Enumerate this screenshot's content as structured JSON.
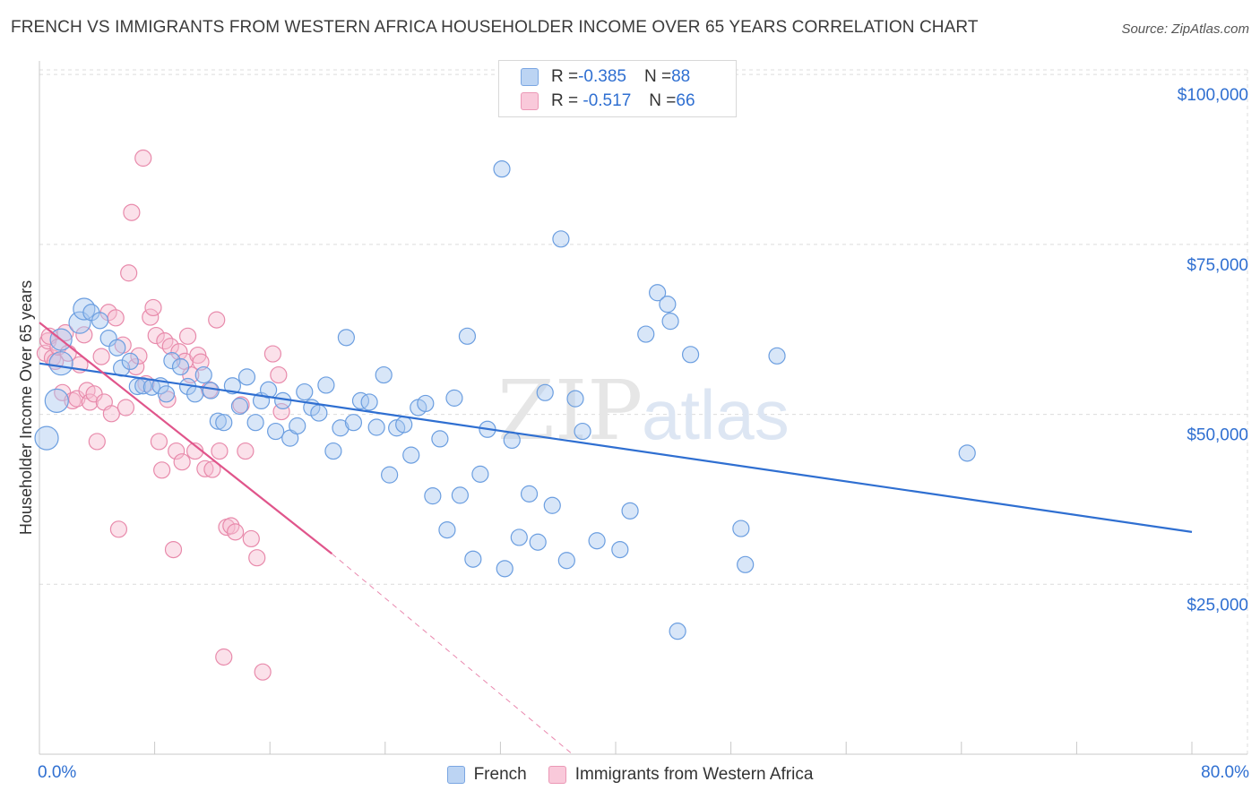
{
  "title": "FRENCH VS IMMIGRANTS FROM WESTERN AFRICA HOUSEHOLDER INCOME OVER 65 YEARS CORRELATION CHART",
  "source": "Source: ZipAtlas.com",
  "watermark": {
    "zip": "ZIP",
    "atlas": "atlas"
  },
  "legend": {
    "french": {
      "r_label": "R = ",
      "r_value": "-0.385",
      "n_label": "N = ",
      "n_value": "88"
    },
    "wafrica": {
      "r_label": "R = ",
      "r_value": " -0.517",
      "n_label": "N = ",
      "n_value": "66"
    }
  },
  "colors": {
    "french_fill": "#a9c8f0",
    "french_stroke": "#6b9ee0",
    "french_line": "#2f6fd1",
    "wafrica_fill": "#f6bcd0",
    "wafrica_stroke": "#e88aab",
    "wafrica_line": "#e0558b",
    "axis_text": "#2f6fd1",
    "grid": "#dcdcdc"
  },
  "chart_data": {
    "type": "scatter",
    "title": "FRENCH VS IMMIGRANTS FROM WESTERN AFRICA HOUSEHOLDER INCOME OVER 65 YEARS CORRELATION CHART",
    "xlabel": "",
    "ylabel": "Householder Income Over 65 years",
    "xlim": [
      0,
      80
    ],
    "ylim": [
      0,
      102000
    ],
    "x_tick_labels": [
      "0.0%",
      "80.0%"
    ],
    "y_ticks": [
      25000,
      50000,
      75000,
      100000
    ],
    "y_tick_labels": [
      "$25,000",
      "$50,000",
      "$75,000",
      "$100,000"
    ],
    "grid": true,
    "series": [
      {
        "name": "French",
        "points": [
          [
            0.5,
            46500,
            3
          ],
          [
            1.2,
            52000,
            3
          ],
          [
            1.5,
            57500,
            3
          ],
          [
            1.5,
            61000,
            2
          ],
          [
            2.8,
            63500,
            2
          ],
          [
            3.1,
            65500,
            2
          ],
          [
            3.6,
            65000,
            1
          ],
          [
            4.2,
            63800,
            1
          ],
          [
            4.8,
            61200,
            1
          ],
          [
            5.4,
            59800,
            1
          ],
          [
            5.7,
            56800,
            1
          ],
          [
            6.3,
            57800,
            1
          ],
          [
            6.8,
            54100,
            1
          ],
          [
            7.2,
            54200,
            1
          ],
          [
            7.8,
            54000,
            1
          ],
          [
            8.4,
            54200,
            1
          ],
          [
            8.8,
            53000,
            1
          ],
          [
            9.2,
            57900,
            1
          ],
          [
            9.8,
            57000,
            1
          ],
          [
            10.3,
            54100,
            1
          ],
          [
            10.8,
            53000,
            1
          ],
          [
            11.4,
            55800,
            1
          ],
          [
            11.9,
            53500,
            1
          ],
          [
            12.4,
            49000,
            1
          ],
          [
            12.8,
            48800,
            1
          ],
          [
            13.4,
            54200,
            1
          ],
          [
            13.9,
            51200,
            1
          ],
          [
            14.4,
            55500,
            1
          ],
          [
            15.0,
            48800,
            1
          ],
          [
            15.4,
            52000,
            1
          ],
          [
            15.9,
            53600,
            1
          ],
          [
            16.4,
            47500,
            1
          ],
          [
            16.9,
            52000,
            1
          ],
          [
            17.4,
            46500,
            1
          ],
          [
            17.9,
            48300,
            1
          ],
          [
            18.4,
            53300,
            1
          ],
          [
            18.9,
            51000,
            1
          ],
          [
            19.4,
            50200,
            1
          ],
          [
            19.9,
            54300,
            1
          ],
          [
            20.4,
            44600,
            1
          ],
          [
            20.9,
            48000,
            1
          ],
          [
            21.3,
            61300,
            1
          ],
          [
            21.8,
            48800,
            1
          ],
          [
            22.3,
            52000,
            1
          ],
          [
            22.9,
            51800,
            1
          ],
          [
            23.4,
            48100,
            1
          ],
          [
            23.9,
            55800,
            1
          ],
          [
            24.3,
            41100,
            1
          ],
          [
            24.8,
            48000,
            1
          ],
          [
            25.3,
            48500,
            1
          ],
          [
            25.8,
            44000,
            1
          ],
          [
            26.3,
            51000,
            1
          ],
          [
            26.8,
            51600,
            1
          ],
          [
            27.3,
            38000,
            1
          ],
          [
            27.8,
            46400,
            1
          ],
          [
            28.3,
            33000,
            1
          ],
          [
            28.8,
            52400,
            1
          ],
          [
            29.2,
            38100,
            1
          ],
          [
            29.7,
            61500,
            1
          ],
          [
            30.1,
            28700,
            1
          ],
          [
            30.6,
            41200,
            1
          ],
          [
            31.1,
            47800,
            1
          ],
          [
            32.1,
            86100,
            1
          ],
          [
            32.3,
            27300,
            1
          ],
          [
            32.8,
            46200,
            1
          ],
          [
            33.3,
            31900,
            1
          ],
          [
            34.0,
            38300,
            1
          ],
          [
            34.6,
            31200,
            1
          ],
          [
            35.1,
            53200,
            1
          ],
          [
            35.6,
            36600,
            1
          ],
          [
            36.2,
            75800,
            1
          ],
          [
            36.6,
            28500,
            1
          ],
          [
            37.2,
            52300,
            1
          ],
          [
            37.7,
            47500,
            1
          ],
          [
            38.7,
            31400,
            1
          ],
          [
            40.3,
            30100,
            1
          ],
          [
            41.0,
            35800,
            1
          ],
          [
            42.1,
            61800,
            1
          ],
          [
            42.9,
            67900,
            1
          ],
          [
            43.6,
            66200,
            1
          ],
          [
            43.8,
            63700,
            1
          ],
          [
            44.3,
            18100,
            1
          ],
          [
            45.2,
            58800,
            1
          ],
          [
            48.7,
            33200,
            1
          ],
          [
            49.0,
            27900,
            1
          ],
          [
            51.2,
            58600,
            1
          ],
          [
            64.4,
            44300,
            1
          ]
        ]
      },
      {
        "name": "Immigrants from Western Africa",
        "points": [
          [
            0.4,
            59000,
            1
          ],
          [
            0.6,
            60800,
            1
          ],
          [
            0.7,
            61500,
            1
          ],
          [
            0.9,
            58300,
            1
          ],
          [
            1.1,
            57800,
            1
          ],
          [
            1.3,
            59900,
            1
          ],
          [
            1.6,
            53200,
            1
          ],
          [
            1.8,
            62000,
            1
          ],
          [
            2.0,
            59000,
            1
          ],
          [
            2.3,
            52000,
            1
          ],
          [
            2.6,
            52300,
            1
          ],
          [
            2.8,
            57300,
            1
          ],
          [
            3.1,
            61700,
            1
          ],
          [
            3.3,
            53500,
            1
          ],
          [
            3.5,
            51800,
            1
          ],
          [
            3.8,
            53000,
            1
          ],
          [
            4.0,
            46000,
            1
          ],
          [
            4.3,
            58500,
            1
          ],
          [
            4.5,
            51800,
            1
          ],
          [
            4.8,
            65000,
            1
          ],
          [
            5.0,
            50100,
            1
          ],
          [
            5.3,
            64200,
            1
          ],
          [
            5.5,
            33100,
            1
          ],
          [
            5.8,
            60200,
            1
          ],
          [
            6.0,
            51000,
            1
          ],
          [
            6.2,
            70800,
            1
          ],
          [
            6.4,
            79700,
            1
          ],
          [
            6.7,
            57000,
            1
          ],
          [
            6.9,
            58600,
            1
          ],
          [
            7.2,
            87700,
            1
          ],
          [
            7.4,
            54500,
            1
          ],
          [
            7.7,
            64300,
            1
          ],
          [
            7.9,
            65700,
            1
          ],
          [
            8.1,
            61600,
            1
          ],
          [
            8.3,
            46000,
            1
          ],
          [
            8.5,
            41800,
            1
          ],
          [
            8.7,
            60800,
            1
          ],
          [
            8.9,
            52200,
            1
          ],
          [
            9.1,
            60000,
            1
          ],
          [
            9.3,
            30100,
            1
          ],
          [
            9.5,
            44600,
            1
          ],
          [
            9.7,
            59200,
            1
          ],
          [
            9.9,
            43000,
            1
          ],
          [
            10.1,
            57800,
            1
          ],
          [
            10.3,
            61500,
            1
          ],
          [
            10.5,
            55800,
            1
          ],
          [
            10.8,
            44600,
            1
          ],
          [
            11.0,
            58700,
            1
          ],
          [
            11.2,
            57700,
            1
          ],
          [
            11.5,
            42000,
            1
          ],
          [
            11.8,
            53600,
            1
          ],
          [
            12.0,
            41900,
            1
          ],
          [
            12.3,
            63900,
            1
          ],
          [
            12.5,
            44600,
            1
          ],
          [
            12.8,
            14300,
            1
          ],
          [
            13.0,
            33400,
            1
          ],
          [
            13.3,
            33600,
            1
          ],
          [
            13.6,
            32700,
            1
          ],
          [
            14.0,
            51400,
            1
          ],
          [
            14.3,
            44600,
            1
          ],
          [
            14.7,
            31700,
            1
          ],
          [
            15.1,
            28900,
            1
          ],
          [
            15.5,
            12100,
            1
          ],
          [
            16.2,
            58900,
            1
          ],
          [
            16.6,
            55800,
            1
          ],
          [
            16.8,
            50400,
            1
          ]
        ]
      }
    ],
    "trend_lines": [
      {
        "series": "French",
        "x": [
          0,
          80
        ],
        "y": [
          57500,
          32700
        ]
      },
      {
        "series": "Immigrants from Western Africa",
        "x": [
          0,
          20.3
        ],
        "y": [
          63500,
          29500
        ],
        "dashed_extension_to": [
          37,
          0
        ]
      }
    ],
    "stats": [
      {
        "series": "French",
        "R": -0.385,
        "N": 88
      },
      {
        "series": "Immigrants from Western Africa",
        "R": -0.517,
        "N": 66
      }
    ],
    "legend_position": "top-center"
  }
}
